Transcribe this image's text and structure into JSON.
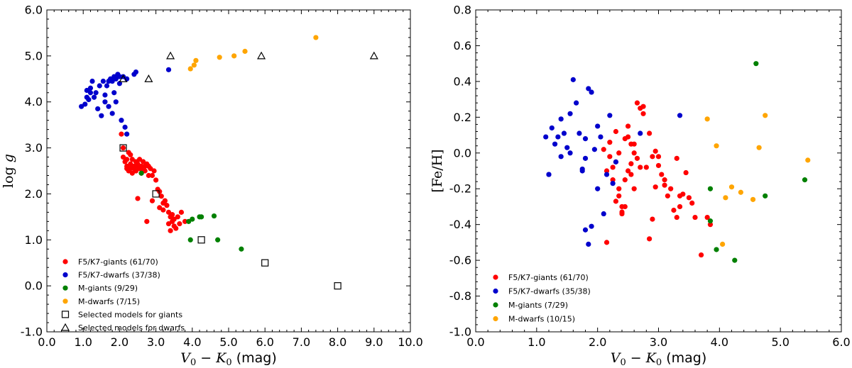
{
  "chart_data": [
    {
      "type": "scatter",
      "id": "left",
      "title": "",
      "xlabel": "V_0 − K_0 (mag)",
      "ylabel": "log g",
      "xlim": [
        0,
        10
      ],
      "ylim": [
        -1,
        6
      ],
      "xticks": [
        "0.0",
        "1.0",
        "2.0",
        "3.0",
        "4.0",
        "5.0",
        "6.0",
        "7.0",
        "8.0",
        "9.0",
        "10.0"
      ],
      "yticks": [
        "-1.0",
        "0.0",
        "1.0",
        "2.0",
        "3.0",
        "4.0",
        "5.0",
        "6.0"
      ],
      "legend_position": "lower-left",
      "series": [
        {
          "name": "F5/K7-giants (61/70)",
          "marker": "circle",
          "color": "#ff0000",
          "points": [
            [
              2.05,
              3.3
            ],
            [
              2.1,
              3.0
            ],
            [
              2.1,
              2.8
            ],
            [
              2.15,
              2.7
            ],
            [
              2.2,
              2.75
            ],
            [
              2.2,
              2.6
            ],
            [
              2.25,
              2.5
            ],
            [
              2.25,
              2.9
            ],
            [
              2.3,
              2.65
            ],
            [
              2.3,
              2.55
            ],
            [
              2.35,
              2.75
            ],
            [
              2.35,
              2.45
            ],
            [
              2.4,
              2.6
            ],
            [
              2.4,
              2.55
            ],
            [
              2.45,
              2.7
            ],
            [
              2.45,
              2.5
            ],
            [
              2.5,
              2.6
            ],
            [
              2.5,
              2.65
            ],
            [
              2.55,
              2.55
            ],
            [
              2.55,
              2.75
            ],
            [
              2.6,
              2.6
            ],
            [
              2.6,
              2.55
            ],
            [
              2.65,
              2.7
            ],
            [
              2.7,
              2.6
            ],
            [
              2.7,
              2.5
            ],
            [
              2.75,
              2.65
            ],
            [
              2.8,
              2.6
            ],
            [
              2.8,
              2.4
            ],
            [
              2.85,
              2.55
            ],
            [
              2.9,
              2.4
            ],
            [
              2.95,
              2.5
            ],
            [
              3.0,
              2.3
            ],
            [
              3.05,
              2.1
            ],
            [
              3.1,
              2.05
            ],
            [
              3.15,
              1.95
            ],
            [
              3.2,
              1.8
            ],
            [
              3.25,
              1.85
            ],
            [
              3.3,
              1.75
            ],
            [
              3.35,
              1.6
            ],
            [
              3.4,
              1.5
            ],
            [
              3.45,
              1.4
            ],
            [
              3.5,
              1.3
            ],
            [
              3.4,
              1.2
            ],
            [
              3.35,
              1.35
            ],
            [
              3.45,
              1.55
            ],
            [
              3.5,
              1.45
            ],
            [
              3.6,
              1.5
            ],
            [
              3.7,
              1.6
            ],
            [
              3.8,
              1.4
            ],
            [
              3.65,
              1.35
            ],
            [
              2.5,
              1.9
            ],
            [
              2.75,
              1.4
            ],
            [
              2.9,
              1.85
            ],
            [
              3.1,
              1.7
            ],
            [
              3.55,
              1.25
            ],
            [
              2.2,
              2.55
            ],
            [
              2.3,
              2.85
            ],
            [
              2.45,
              2.5
            ],
            [
              2.6,
              2.45
            ],
            [
              2.35,
              2.6
            ],
            [
              3.2,
              1.65
            ]
          ]
        },
        {
          "name": "F5/K7-dwarfs (37/38)",
          "marker": "circle",
          "color": "#0000cc",
          "points": [
            [
              0.95,
              3.9
            ],
            [
              1.05,
              3.95
            ],
            [
              1.1,
              4.1
            ],
            [
              1.1,
              4.25
            ],
            [
              1.15,
              4.05
            ],
            [
              1.2,
              4.2
            ],
            [
              1.2,
              4.3
            ],
            [
              1.25,
              4.45
            ],
            [
              1.3,
              4.1
            ],
            [
              1.35,
              4.2
            ],
            [
              1.4,
              3.85
            ],
            [
              1.45,
              4.35
            ],
            [
              1.5,
              3.7
            ],
            [
              1.55,
              4.45
            ],
            [
              1.6,
              4.0
            ],
            [
              1.6,
              4.15
            ],
            [
              1.65,
              4.35
            ],
            [
              1.7,
              4.45
            ],
            [
              1.75,
              4.5
            ],
            [
              1.8,
              4.45
            ],
            [
              1.85,
              4.55
            ],
            [
              1.9,
              4.5
            ],
            [
              1.95,
              4.6
            ],
            [
              2.0,
              4.55
            ],
            [
              2.0,
              4.4
            ],
            [
              1.7,
              3.9
            ],
            [
              1.8,
              3.75
            ],
            [
              1.85,
              4.2
            ],
            [
              1.9,
              4.0
            ],
            [
              2.05,
              3.6
            ],
            [
              2.15,
              3.45
            ],
            [
              2.2,
              3.3
            ],
            [
              2.1,
              4.55
            ],
            [
              2.2,
              4.5
            ],
            [
              2.4,
              4.6
            ],
            [
              2.45,
              4.65
            ],
            [
              3.35,
              4.7
            ]
          ]
        },
        {
          "name": "M-giants (9/29)",
          "marker": "circle",
          "color": "#008000",
          "points": [
            [
              3.9,
              1.4
            ],
            [
              4.0,
              1.45
            ],
            [
              4.2,
              1.5
            ],
            [
              4.25,
              1.5
            ],
            [
              4.6,
              1.52
            ],
            [
              3.95,
              1.0
            ],
            [
              4.7,
              1.0
            ],
            [
              5.35,
              0.8
            ],
            [
              2.6,
              2.45
            ]
          ]
        },
        {
          "name": "M-dwarfs (7/15)",
          "marker": "circle",
          "color": "#ffa500",
          "points": [
            [
              3.95,
              4.72
            ],
            [
              4.05,
              4.8
            ],
            [
              4.1,
              4.9
            ],
            [
              4.75,
              4.97
            ],
            [
              5.15,
              5.0
            ],
            [
              5.45,
              5.1
            ],
            [
              7.4,
              5.4
            ]
          ]
        },
        {
          "name": "Selected models for giants",
          "marker": "square",
          "color": "#000000",
          "points": [
            [
              2.1,
              3.0
            ],
            [
              3.0,
              2.0
            ],
            [
              4.25,
              1.0
            ],
            [
              6.0,
              0.5
            ],
            [
              8.0,
              0.0
            ]
          ]
        },
        {
          "name": "Selected models for dwarfs",
          "marker": "triangle",
          "color": "#000000",
          "points": [
            [
              2.1,
              4.5
            ],
            [
              2.8,
              4.5
            ],
            [
              3.4,
              5.0
            ],
            [
              5.9,
              5.0
            ],
            [
              9.0,
              5.0
            ]
          ]
        }
      ]
    },
    {
      "type": "scatter",
      "id": "right",
      "title": "",
      "xlabel": "V_0 − K_0 (mag)",
      "ylabel": "[Fe/H]",
      "xlim": [
        0,
        6
      ],
      "ylim": [
        -1,
        0.8
      ],
      "xticks": [
        "0.0",
        "1.0",
        "2.0",
        "3.0",
        "4.0",
        "5.0",
        "6.0"
      ],
      "yticks": [
        "-1.0",
        "-0.8",
        "-0.6",
        "-0.4",
        "-0.2",
        "0.0",
        "0.2",
        "0.4",
        "0.6",
        "0.8"
      ],
      "legend_position": "lower-left",
      "series": [
        {
          "name": "F5/K7-giants (61/70)",
          "marker": "circle",
          "color": "#ff0000",
          "points": [
            [
              2.15,
              -0.5
            ],
            [
              2.2,
              0.06
            ],
            [
              2.3,
              0.12
            ],
            [
              2.35,
              0.0
            ],
            [
              2.4,
              -0.3
            ],
            [
              2.45,
              0.08
            ],
            [
              2.5,
              0.15
            ],
            [
              2.55,
              0.05
            ],
            [
              2.6,
              0.0
            ],
            [
              2.65,
              0.28
            ],
            [
              2.7,
              0.25
            ],
            [
              2.75,
              0.26
            ],
            [
              2.8,
              -0.08
            ],
            [
              2.85,
              0.11
            ],
            [
              2.9,
              -0.37
            ],
            [
              2.95,
              -0.19
            ],
            [
              3.0,
              -0.07
            ],
            [
              3.05,
              -0.12
            ],
            [
              3.1,
              -0.15
            ],
            [
              3.2,
              -0.2
            ],
            [
              3.25,
              -0.32
            ],
            [
              3.3,
              -0.36
            ],
            [
              3.35,
              -0.24
            ],
            [
              3.4,
              -0.23
            ],
            [
              3.45,
              -0.11
            ],
            [
              3.5,
              -0.25
            ],
            [
              3.6,
              -0.36
            ],
            [
              3.7,
              -0.57
            ],
            [
              3.8,
              -0.36
            ],
            [
              3.85,
              -0.4
            ],
            [
              2.3,
              -0.05
            ],
            [
              2.35,
              -0.2
            ],
            [
              2.4,
              -0.33
            ],
            [
              2.45,
              -0.15
            ],
            [
              2.5,
              -0.1
            ],
            [
              2.55,
              -0.12
            ],
            [
              2.6,
              -0.2
            ],
            [
              2.2,
              -0.02
            ],
            [
              2.25,
              -0.08
            ],
            [
              2.3,
              -0.27
            ],
            [
              2.35,
              -0.24
            ],
            [
              2.4,
              -0.34
            ],
            [
              2.45,
              -0.3
            ],
            [
              2.5,
              0.09
            ],
            [
              2.55,
              -0.06
            ],
            [
              2.6,
              0.05
            ],
            [
              2.65,
              -0.03
            ],
            [
              2.7,
              -0.08
            ],
            [
              2.75,
              0.22
            ],
            [
              2.85,
              -0.48
            ],
            [
              2.9,
              -0.02
            ],
            [
              3.0,
              -0.02
            ],
            [
              3.1,
              -0.18
            ],
            [
              3.3,
              -0.03
            ],
            [
              3.35,
              -0.3
            ],
            [
              3.55,
              -0.28
            ],
            [
              2.1,
              0.02
            ],
            [
              2.15,
              -0.1
            ],
            [
              2.25,
              -0.15
            ],
            [
              2.95,
              0.01
            ],
            [
              3.15,
              -0.24
            ]
          ]
        },
        {
          "name": "F5/K7-dwarfs (35/38)",
          "marker": "circle",
          "color": "#0000cc",
          "points": [
            [
              1.15,
              0.09
            ],
            [
              1.2,
              -0.12
            ],
            [
              1.25,
              0.14
            ],
            [
              1.3,
              0.05
            ],
            [
              1.35,
              0.09
            ],
            [
              1.4,
              0.19
            ],
            [
              1.4,
              -0.02
            ],
            [
              1.45,
              0.11
            ],
            [
              1.5,
              0.03
            ],
            [
              1.55,
              0.0
            ],
            [
              1.6,
              0.41
            ],
            [
              1.65,
              0.28
            ],
            [
              1.7,
              0.11
            ],
            [
              1.75,
              -0.09
            ],
            [
              1.8,
              0.08
            ],
            [
              1.85,
              0.36
            ],
            [
              1.9,
              0.34
            ],
            [
              1.95,
              0.02
            ],
            [
              2.0,
              0.15
            ],
            [
              2.05,
              0.09
            ],
            [
              2.1,
              -0.34
            ],
            [
              2.15,
              -0.12
            ],
            [
              2.2,
              0.21
            ],
            [
              2.25,
              -0.17
            ],
            [
              2.3,
              -0.05
            ],
            [
              1.8,
              -0.43
            ],
            [
              1.85,
              -0.51
            ],
            [
              1.9,
              -0.41
            ],
            [
              2.0,
              -0.2
            ],
            [
              1.75,
              -0.1
            ],
            [
              1.8,
              -0.03
            ],
            [
              1.2,
              -0.12
            ],
            [
              2.7,
              0.11
            ],
            [
              3.35,
              0.21
            ],
            [
              1.55,
              0.22
            ]
          ]
        },
        {
          "name": "M-giants (7/29)",
          "marker": "circle",
          "color": "#008000",
          "points": [
            [
              3.85,
              -0.2
            ],
            [
              3.85,
              -0.38
            ],
            [
              3.95,
              -0.54
            ],
            [
              4.25,
              -0.6
            ],
            [
              4.6,
              0.5
            ],
            [
              4.75,
              -0.24
            ],
            [
              5.4,
              -0.15
            ]
          ]
        },
        {
          "name": "M-dwarfs (10/15)",
          "marker": "circle",
          "color": "#ffa500",
          "points": [
            [
              3.8,
              0.19
            ],
            [
              3.95,
              0.04
            ],
            [
              4.05,
              -0.51
            ],
            [
              4.1,
              -0.25
            ],
            [
              4.2,
              -0.19
            ],
            [
              4.35,
              -0.22
            ],
            [
              4.55,
              -0.26
            ],
            [
              4.65,
              0.03
            ],
            [
              4.75,
              0.21
            ],
            [
              5.45,
              -0.04
            ]
          ]
        }
      ]
    }
  ]
}
